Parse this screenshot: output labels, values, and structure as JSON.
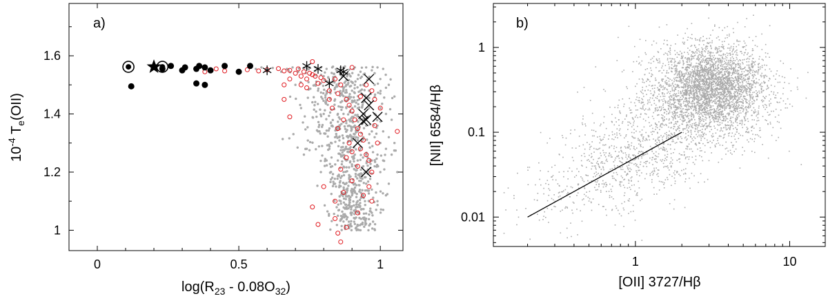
{
  "chart_data": [
    {
      "panel_label": "a)",
      "type": "scatter",
      "xlabel": "log(R23 - 0.08O32)",
      "xlabel_parts": {
        "pre": "log(R",
        "sub1": "23",
        "mid": " - 0.08O",
        "sub2": "32",
        "post": ")"
      },
      "ylabel": "10-4 Te(OII)",
      "ylabel_parts": {
        "base": "10",
        "sup": "-4",
        "mid": " T",
        "sub": "e",
        "post": "(OII)"
      },
      "xlim": [
        -0.1,
        1.08
      ],
      "ylim": [
        0.93,
        1.78
      ],
      "x_ticks": [
        0,
        0.5,
        1
      ],
      "x_tick_labels": [
        "0",
        "0.5",
        "1"
      ],
      "y_ticks": [
        1,
        1.2,
        1.4,
        1.6
      ],
      "y_tick_labels": [
        "1",
        "1.2",
        "1.4",
        "1.6"
      ],
      "series": [
        {
          "name": "filled circles",
          "marker": "filled-circle",
          "color": "#000000",
          "points": [
            [
              0.12,
              1.495
            ],
            [
              0.23,
              1.555
            ],
            [
              0.26,
              1.565
            ],
            [
              0.3,
              1.55
            ],
            [
              0.31,
              1.56
            ],
            [
              0.35,
              1.555
            ],
            [
              0.36,
              1.565
            ],
            [
              0.38,
              1.56
            ],
            [
              0.4,
              1.55
            ],
            [
              0.45,
              1.565
            ],
            [
              0.5,
              1.545
            ],
            [
              0.54,
              1.565
            ],
            [
              0.35,
              1.505
            ],
            [
              0.38,
              1.5
            ]
          ]
        },
        {
          "name": "circled dots",
          "marker": "circled-dot",
          "color": "#000000",
          "points": [
            [
              0.11,
              1.562
            ],
            [
              0.23,
              1.562
            ]
          ]
        },
        {
          "name": "star",
          "marker": "star",
          "color": "#000000",
          "points": [
            [
              0.2,
              1.562
            ]
          ]
        },
        {
          "name": "asterisks",
          "marker": "asterisk",
          "color": "#000000",
          "points": [
            [
              0.6,
              1.55
            ],
            [
              0.74,
              1.565
            ],
            [
              0.78,
              1.555
            ],
            [
              0.82,
              1.505
            ],
            [
              0.86,
              1.55
            ],
            [
              0.87,
              1.545
            ]
          ]
        },
        {
          "name": "crosses",
          "marker": "cross",
          "color": "#000000",
          "points": [
            [
              0.87,
              1.53
            ],
            [
              0.96,
              1.52
            ],
            [
              0.95,
              1.455
            ],
            [
              0.96,
              1.43
            ],
            [
              0.94,
              1.4
            ],
            [
              0.99,
              1.39
            ],
            [
              0.95,
              1.38
            ],
            [
              0.94,
              1.375
            ],
            [
              0.92,
              1.3
            ],
            [
              0.95,
              1.2
            ]
          ]
        },
        {
          "name": "red open circles",
          "marker": "open-circle",
          "color": "#e0161c",
          "points": [
            [
              0.38,
              1.545
            ],
            [
              0.42,
              1.555
            ],
            [
              0.45,
              1.548
            ],
            [
              0.53,
              1.552
            ],
            [
              0.57,
              1.548
            ],
            [
              0.6,
              1.552
            ],
            [
              0.64,
              1.556
            ],
            [
              0.66,
              1.548
            ],
            [
              0.68,
              1.55
            ],
            [
              0.7,
              1.54
            ],
            [
              0.71,
              1.555
            ],
            [
              0.72,
              1.53
            ],
            [
              0.73,
              1.545
            ],
            [
              0.74,
              1.52
            ],
            [
              0.75,
              1.54
            ],
            [
              0.76,
              1.535
            ],
            [
              0.77,
              1.53
            ],
            [
              0.78,
              1.505
            ],
            [
              0.79,
              1.525
            ],
            [
              0.8,
              1.515
            ],
            [
              0.68,
              1.52
            ],
            [
              0.72,
              1.5
            ],
            [
              0.66,
              1.5
            ],
            [
              0.74,
              1.49
            ],
            [
              0.82,
              1.48
            ],
            [
              0.84,
              1.52
            ],
            [
              0.85,
              1.47
            ],
            [
              0.86,
              1.5
            ],
            [
              0.88,
              1.45
            ],
            [
              0.89,
              1.43
            ],
            [
              0.9,
              1.41
            ],
            [
              0.91,
              1.38
            ],
            [
              0.92,
              1.35
            ],
            [
              0.93,
              1.33
            ],
            [
              0.94,
              1.31
            ],
            [
              0.93,
              1.28
            ],
            [
              0.95,
              1.26
            ],
            [
              0.96,
              1.24
            ],
            [
              0.9,
              1.27
            ],
            [
              0.92,
              1.22
            ],
            [
              0.97,
              1.2
            ],
            [
              0.96,
              1.15
            ],
            [
              0.94,
              1.12
            ],
            [
              0.9,
              1.17
            ],
            [
              0.87,
              1.13
            ],
            [
              0.86,
              1.21
            ],
            [
              0.88,
              1.25
            ],
            [
              0.89,
              1.3
            ],
            [
              0.85,
              1.35
            ],
            [
              0.87,
              1.38
            ],
            [
              0.83,
              1.42
            ],
            [
              0.82,
              1.45
            ],
            [
              0.8,
              1.15
            ],
            [
              0.84,
              1.04
            ],
            [
              0.88,
              1.01
            ],
            [
              0.86,
              0.96
            ],
            [
              0.85,
              0.99
            ],
            [
              0.78,
              1.02
            ],
            [
              0.76,
              1.08
            ],
            [
              0.84,
              1.1
            ],
            [
              0.93,
              1.46
            ],
            [
              0.97,
              1.48
            ],
            [
              1.0,
              1.42
            ],
            [
              0.98,
              1.36
            ],
            [
              1.06,
              1.34
            ],
            [
              0.99,
              1.3
            ],
            [
              0.97,
              1.1
            ],
            [
              0.92,
              1.06
            ],
            [
              0.66,
              1.45
            ],
            [
              0.68,
              1.39
            ],
            [
              0.76,
              1.58
            ],
            [
              0.9,
              1.56
            ],
            [
              0.95,
              1.5
            ],
            [
              0.98,
              1.45
            ]
          ]
        },
        {
          "name": "grey points",
          "marker": "small-dot",
          "color": "#aaaaaa",
          "points": [
            [
              0.56,
              1.555
            ],
            [
              0.58,
              1.56
            ],
            [
              0.62,
              1.558
            ],
            [
              0.65,
              1.545
            ],
            [
              0.67,
              1.555
            ],
            [
              0.69,
              1.56
            ],
            [
              0.71,
              1.545
            ],
            [
              0.73,
              1.558
            ],
            [
              0.75,
              1.56
            ],
            [
              0.77,
              1.548
            ],
            [
              0.79,
              1.56
            ],
            [
              0.81,
              1.555
            ],
            [
              0.83,
              1.56
            ],
            [
              0.85,
              1.545
            ],
            [
              0.87,
              1.56
            ],
            [
              0.89,
              1.552
            ],
            [
              0.91,
              1.56
            ],
            [
              0.93,
              1.545
            ],
            [
              0.95,
              1.56
            ],
            [
              0.97,
              1.55
            ],
            [
              0.99,
              1.56
            ],
            [
              1.01,
              1.555
            ],
            [
              0.8,
              1.53
            ],
            [
              0.82,
              1.51
            ],
            [
              0.84,
              1.49
            ],
            [
              0.86,
              1.47
            ],
            [
              0.88,
              1.5
            ],
            [
              0.9,
              1.48
            ],
            [
              0.92,
              1.52
            ],
            [
              0.94,
              1.5
            ],
            [
              0.96,
              1.48
            ],
            [
              0.98,
              1.5
            ],
            [
              1.0,
              1.47
            ],
            [
              1.02,
              1.49
            ],
            [
              0.86,
              1.44
            ],
            [
              0.88,
              1.42
            ],
            [
              0.9,
              1.44
            ],
            [
              0.92,
              1.42
            ],
            [
              0.94,
              1.44
            ],
            [
              0.96,
              1.42
            ],
            [
              0.98,
              1.4
            ],
            [
              1.0,
              1.42
            ],
            [
              1.02,
              1.4
            ],
            [
              1.04,
              1.38
            ],
            [
              0.87,
              1.4
            ],
            [
              0.89,
              1.38
            ],
            [
              0.91,
              1.36
            ],
            [
              0.93,
              1.38
            ],
            [
              0.95,
              1.36
            ],
            [
              0.97,
              1.34
            ],
            [
              0.99,
              1.36
            ],
            [
              1.01,
              1.34
            ],
            [
              1.03,
              1.32
            ],
            [
              0.88,
              1.34
            ],
            [
              0.9,
              1.32
            ],
            [
              0.92,
              1.34
            ],
            [
              0.94,
              1.32
            ],
            [
              0.96,
              1.3
            ],
            [
              0.98,
              1.32
            ],
            [
              1.0,
              1.3
            ],
            [
              1.02,
              1.28
            ],
            [
              0.87,
              1.3
            ],
            [
              0.89,
              1.28
            ],
            [
              0.91,
              1.26
            ],
            [
              0.93,
              1.28
            ],
            [
              0.95,
              1.26
            ],
            [
              0.97,
              1.24
            ],
            [
              0.99,
              1.26
            ],
            [
              1.01,
              1.24
            ],
            [
              0.86,
              1.26
            ],
            [
              0.88,
              1.24
            ],
            [
              0.9,
              1.22
            ],
            [
              0.92,
              1.24
            ],
            [
              0.94,
              1.22
            ],
            [
              0.96,
              1.2
            ],
            [
              0.98,
              1.22
            ],
            [
              1.0,
              1.2
            ],
            [
              0.87,
              1.2
            ],
            [
              0.89,
              1.18
            ],
            [
              0.91,
              1.16
            ],
            [
              0.93,
              1.18
            ],
            [
              0.95,
              1.16
            ],
            [
              0.97,
              1.14
            ],
            [
              0.99,
              1.16
            ],
            [
              0.88,
              1.14
            ],
            [
              0.9,
              1.12
            ],
            [
              0.92,
              1.1
            ],
            [
              0.94,
              1.12
            ],
            [
              0.96,
              1.1
            ],
            [
              0.86,
              1.1
            ],
            [
              0.88,
              1.08
            ],
            [
              0.9,
              1.06
            ],
            [
              0.92,
              1.08
            ],
            [
              0.85,
              1.05
            ],
            [
              0.87,
              1.03
            ],
            [
              0.89,
              1.01
            ],
            [
              0.91,
              1.04
            ],
            [
              0.84,
              1.16
            ],
            [
              0.86,
              1.18
            ],
            [
              0.83,
              1.22
            ],
            [
              0.85,
              1.24
            ],
            [
              0.82,
              1.28
            ],
            [
              0.84,
              1.32
            ],
            [
              0.83,
              1.36
            ],
            [
              0.85,
              1.4
            ],
            [
              0.84,
              1.45
            ],
            [
              0.81,
              1.47
            ],
            [
              1.05,
              1.3
            ],
            [
              1.06,
              1.2
            ],
            [
              1.04,
              1.26
            ],
            [
              1.03,
              1.16
            ],
            [
              0.74,
              1.28
            ],
            [
              0.73,
              1.26
            ],
            [
              0.79,
              1.2
            ],
            [
              0.81,
              1.24
            ],
            [
              0.78,
              1.34
            ],
            [
              0.8,
              1.4
            ],
            [
              0.76,
              1.44
            ],
            [
              0.78,
              1.48
            ],
            [
              0.72,
              1.42
            ],
            [
              0.7,
              1.5
            ],
            [
              0.93,
              1.0
            ],
            [
              0.95,
              1.04
            ],
            [
              0.97,
              1.06
            ],
            [
              0.99,
              1.1
            ],
            [
              1.02,
              1.12
            ],
            [
              0.96,
              1.52
            ],
            [
              0.98,
              1.54
            ],
            [
              1.0,
              1.52
            ],
            [
              1.03,
              1.5
            ],
            [
              1.05,
              1.46
            ],
            [
              0.93,
              1.48
            ],
            [
              0.91,
              1.5
            ],
            [
              0.89,
              1.46
            ],
            [
              0.87,
              1.48
            ]
          ]
        }
      ]
    },
    {
      "panel_label": "b)",
      "type": "scatter",
      "xscale": "log",
      "yscale": "log",
      "xlabel": "[OII] 3727/Hβ",
      "ylabel": "[NII] 6584/Hβ",
      "xlim": [
        0.12,
        17
      ],
      "ylim": [
        0.0045,
        3.3
      ],
      "x_ticks": [
        1,
        10
      ],
      "x_tick_labels": [
        "1",
        "10"
      ],
      "y_ticks": [
        0.01,
        0.1,
        1
      ],
      "y_tick_labels": [
        "0.01",
        "0.1",
        "1"
      ],
      "fit_line": {
        "x": [
          0.2,
          2.0
        ],
        "y": [
          0.01,
          0.1
        ],
        "color": "#000000"
      },
      "point_cloud": {
        "color": "#aaaaaa",
        "clusters": [
          {
            "cx": 3.2,
            "cy": 0.35,
            "sx": 0.17,
            "sy": 0.24,
            "n": 2600
          },
          {
            "cx": 2.6,
            "cy": 0.25,
            "sx": 0.22,
            "sy": 0.32,
            "n": 1200
          },
          {
            "cx": 1.1,
            "cy": 0.06,
            "sx": 0.22,
            "sy": 0.26,
            "n": 500
          },
          {
            "cx": 0.6,
            "cy": 0.03,
            "sx": 0.2,
            "sy": 0.25,
            "n": 260
          },
          {
            "cx": 0.32,
            "cy": 0.016,
            "sx": 0.16,
            "sy": 0.22,
            "n": 90
          }
        ]
      }
    }
  ]
}
